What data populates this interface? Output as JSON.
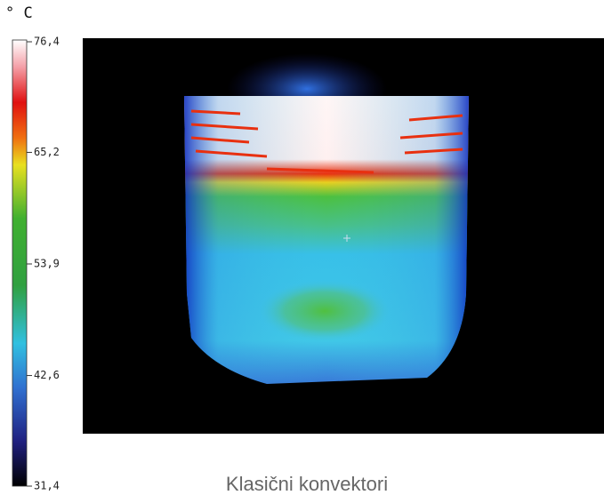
{
  "scale": {
    "unit": "° C",
    "ticks": [
      {
        "value": 76.4,
        "label": "76,4"
      },
      {
        "value": 65.2,
        "label": "65,2"
      },
      {
        "value": 53.9,
        "label": "53,9"
      },
      {
        "value": 42.6,
        "label": "42,6"
      },
      {
        "value": 31.4,
        "label": "31,4"
      }
    ]
  },
  "caption": "Klasični konvektori"
}
